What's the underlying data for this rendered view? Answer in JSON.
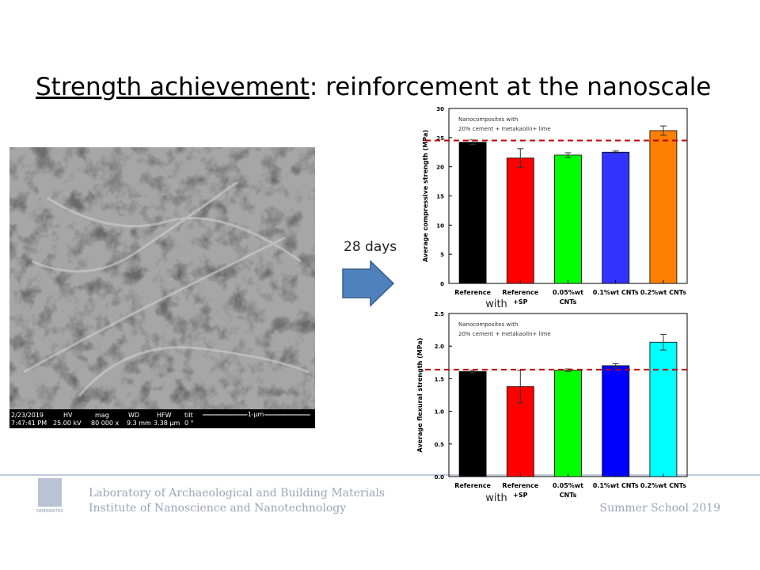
{
  "slide": {
    "title_underlined": "Strength achievement",
    "title_rest": ": reinforcement at the nanoscale",
    "arrow_label": "28 days",
    "overlay_text": [
      "with",
      "with"
    ],
    "footer": [
      "Laboratory of Archaeological and Building Materials",
      "Institute of Nanoscience and Nanotechnology"
    ],
    "event": "Summer School 2019",
    "logo_text": "DEMOKRITOS"
  },
  "sem": {
    "info_labels": [
      "2/23/2019",
      "HV",
      "mag",
      "WD",
      "HFW",
      "tilt"
    ],
    "info_values": [
      "7:47:41 PM",
      "25.00 kV",
      "80 000 x",
      "9.3 mm",
      "3.38 µm",
      "0 °"
    ],
    "scale_bar": "1 µm"
  },
  "chart_data": [
    {
      "type": "bar",
      "y_label": "Average compressive strength (MPa)",
      "annotation": [
        "Nanocomposites with",
        "20% cement + metakaolin+ lime"
      ],
      "categories": [
        "Reference",
        "Reference +SP",
        "0.05%wt CNTs",
        "0.1%wt CNTs",
        "0.2%wt CNTs"
      ],
      "values": [
        24.2,
        21.5,
        22.0,
        22.5,
        26.2
      ],
      "errors": [
        0.4,
        1.6,
        0.4,
        0.2,
        0.8
      ],
      "colors": [
        "#000000",
        "#ff0000",
        "#00ff00",
        "#3333ff",
        "#ff8000"
      ],
      "reference_line": 24.5,
      "reference_line_color": "#c00000",
      "ylim": [
        0,
        30
      ],
      "yticks": [
        0,
        5,
        10,
        15,
        20,
        25,
        30
      ]
    },
    {
      "type": "bar",
      "y_label": "Average flexural strength (MPa)",
      "annotation": [
        "Nanocomposites with",
        "20% cement + metakaolin+ lime"
      ],
      "categories": [
        "Reference",
        "Reference +SP",
        "0.05%wt CNTs",
        "0.1%wt CNTs",
        "0.2%wt CNTs"
      ],
      "values": [
        1.61,
        1.38,
        1.63,
        1.7,
        2.06
      ],
      "errors": [
        0.02,
        0.25,
        0.02,
        0.03,
        0.12
      ],
      "colors": [
        "#000000",
        "#ff0000",
        "#00ff00",
        "#0000ff",
        "#00ffff"
      ],
      "reference_line": 1.64,
      "reference_line_color": "#c00000",
      "ylim": [
        0,
        2.5
      ],
      "yticks": [
        {
          "value": 0,
          "label": "0.0"
        },
        0.5,
        {
          "value": 1,
          "label": "1.0"
        },
        1.5,
        {
          "value": 2,
          "label": "2.0"
        },
        2.5
      ]
    }
  ]
}
